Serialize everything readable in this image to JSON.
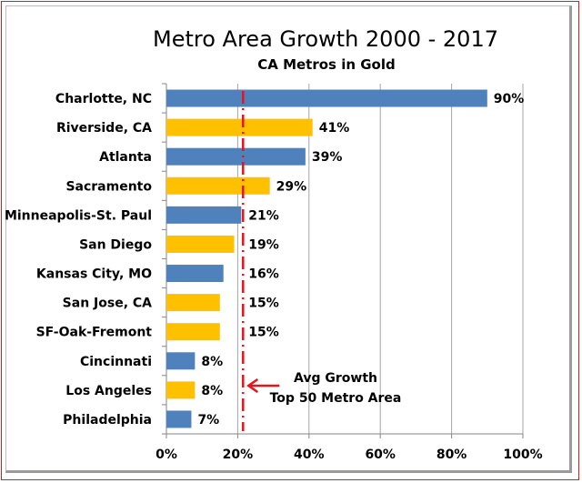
{
  "chart_data": {
    "type": "bar",
    "orientation": "horizontal",
    "title": "Metro Area Growth 2000 - 2017",
    "subtitle": "CA Metros in Gold",
    "xlabel": "",
    "ylabel": "",
    "xlim": [
      0,
      100
    ],
    "x_ticks": [
      "0%",
      "20%",
      "40%",
      "60%",
      "80%",
      "100%"
    ],
    "x_tick_values": [
      0,
      20,
      40,
      60,
      80,
      100
    ],
    "grid": true,
    "colors": {
      "other": "#4f81bd",
      "ca": "#ffc000",
      "avg_line": "#e8141b",
      "annotation_arrow": "#e8141b"
    },
    "categories": [
      "Charlotte, NC",
      "Riverside, CA",
      "Atlanta",
      "Sacramento",
      "Minneapolis-St. Paul",
      "San Diego",
      "Kansas City, MO",
      "San Jose, CA",
      "SF-Oak-Fremont",
      "Cincinnati",
      "Los Angeles",
      "Philadelphia"
    ],
    "values": [
      90,
      41,
      39,
      29,
      21,
      19,
      16,
      15,
      15,
      8,
      8,
      7
    ],
    "value_labels": [
      "90%",
      "41%",
      "39%",
      "29%",
      "21%",
      "19%",
      "16%",
      "15%",
      "15%",
      "8%",
      "8%",
      "7%"
    ],
    "is_ca": [
      false,
      true,
      false,
      true,
      false,
      true,
      false,
      true,
      true,
      false,
      true,
      false
    ],
    "average_line": {
      "value": 21.5,
      "label_line1": "Avg Growth",
      "label_line2": "Top 50 Metro Area"
    }
  }
}
